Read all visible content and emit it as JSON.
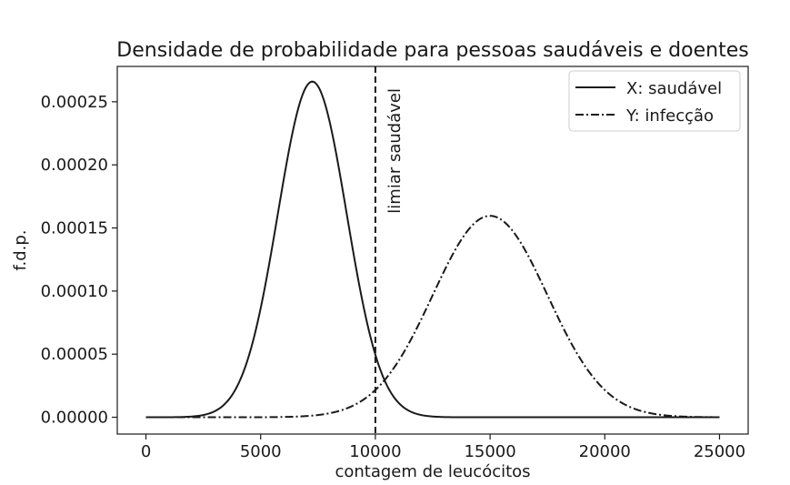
{
  "chart_data": {
    "type": "line",
    "title": "Densidade de probabilidade para pessoas saudáveis e doentes",
    "xlabel": "contagem de leucócitos",
    "ylabel": "f.d.p.",
    "xlim": [
      -1250,
      26250
    ],
    "ylim": [
      -1.33e-05,
      0.000278
    ],
    "xticks": [
      0,
      5000,
      10000,
      15000,
      20000,
      25000
    ],
    "xtick_labels": [
      "0",
      "5000",
      "10000",
      "15000",
      "20000",
      "25000"
    ],
    "yticks": [
      0,
      5e-05,
      0.0001,
      0.00015,
      0.0002,
      0.00025
    ],
    "ytick_labels": [
      "0.00000",
      "0.00005",
      "0.00010",
      "0.00015",
      "0.00020",
      "0.00025"
    ],
    "grid": false,
    "legend_position": "top-right",
    "series": [
      {
        "name": "X: saudável",
        "line_style": "solid",
        "color": "#1a1a1a",
        "distribution": "normal",
        "mean": 7250,
        "sd": 1500,
        "x_range": [
          0,
          25000
        ]
      },
      {
        "name": "Y: infecção",
        "line_style": "dash-dot",
        "color": "#1a1a1a",
        "distribution": "normal",
        "mean": 15000,
        "sd": 2500,
        "x_range": [
          0,
          25000
        ]
      }
    ],
    "vertical_line": {
      "x": 10000,
      "line_style": "dashed",
      "label": "limiar saudável"
    }
  }
}
